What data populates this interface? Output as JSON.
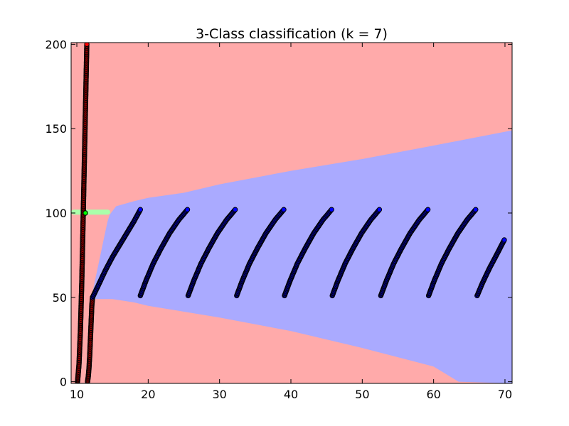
{
  "chart_data": {
    "type": "scatter",
    "title": "3-Class classification (k = 7)",
    "xlabel": "",
    "ylabel": "",
    "xlim": [
      9.2,
      71
    ],
    "ylim": [
      -1,
      201
    ],
    "xticks": [
      10,
      20,
      30,
      40,
      50,
      60,
      70
    ],
    "yticks": [
      0,
      50,
      100,
      150,
      200
    ],
    "grid": false,
    "colors": {
      "region_red": "#FFAAAA",
      "region_green": "#AAFFAA",
      "region_blue": "#AAAAFF",
      "point_red": "#FF0000",
      "point_green": "#00FF00",
      "point_blue": "#0000FF",
      "point_edge": "#000000"
    },
    "regions": {
      "background_class": "red",
      "blue_upper_boundary": [
        [
          14.6,
          99
        ],
        [
          15.5,
          104
        ],
        [
          18,
          107
        ],
        [
          20,
          109
        ],
        [
          25,
          112
        ],
        [
          30,
          117
        ],
        [
          40,
          125
        ],
        [
          50,
          132
        ],
        [
          60,
          140
        ],
        [
          71,
          149
        ]
      ],
      "blue_lower_boundary": [
        [
          12,
          49
        ],
        [
          15,
          49
        ],
        [
          18,
          47
        ],
        [
          20,
          45
        ],
        [
          30,
          38
        ],
        [
          40,
          30
        ],
        [
          50,
          20
        ],
        [
          60,
          9
        ],
        [
          63.5,
          0
        ]
      ],
      "blue_left_boundary": [
        [
          12,
          49
        ],
        [
          13,
          69
        ],
        [
          13.8,
          85
        ],
        [
          14.3,
          95
        ],
        [
          14.6,
          99
        ]
      ],
      "green_band": {
        "x_from": 9.2,
        "x_to": 14.7,
        "y_low": 99,
        "y_high": 102
      }
    },
    "series": [
      {
        "class": "red",
        "points": [
          [
            10.1,
            0
          ],
          [
            10.2,
            5
          ],
          [
            10.3,
            10
          ],
          [
            10.4,
            20
          ],
          [
            10.5,
            30
          ],
          [
            10.6,
            45
          ],
          [
            10.7,
            60
          ],
          [
            10.8,
            80
          ],
          [
            10.9,
            100
          ],
          [
            11.0,
            120
          ],
          [
            11.1,
            140
          ],
          [
            11.2,
            160
          ],
          [
            11.3,
            180
          ],
          [
            11.4,
            200
          ]
        ]
      },
      {
        "class": "red",
        "points": [
          [
            11.5,
            0
          ],
          [
            11.6,
            3
          ],
          [
            11.7,
            8
          ],
          [
            11.8,
            15
          ],
          [
            11.9,
            25
          ],
          [
            12.0,
            35
          ],
          [
            12.1,
            45
          ],
          [
            12.2,
            50
          ]
        ]
      },
      {
        "class": "green",
        "points": [
          [
            11.2,
            100
          ]
        ]
      },
      {
        "class": "blue",
        "points": [
          [
            12.2,
            50
          ],
          [
            13,
            57
          ],
          [
            14,
            66
          ],
          [
            15,
            74
          ],
          [
            16,
            81
          ],
          [
            17,
            88
          ],
          [
            18,
            95
          ],
          [
            18.9,
            102
          ]
        ]
      },
      {
        "class": "blue",
        "points": [
          [
            18.9,
            51
          ],
          [
            19.7,
            60
          ],
          [
            20.7,
            70
          ],
          [
            21.8,
            79
          ],
          [
            23,
            88
          ],
          [
            24.3,
            96
          ],
          [
            25.5,
            102
          ]
        ]
      },
      {
        "class": "blue",
        "points": [
          [
            25.6,
            51
          ],
          [
            26.4,
            60
          ],
          [
            27.4,
            70
          ],
          [
            28.5,
            79
          ],
          [
            29.7,
            88
          ],
          [
            31,
            96
          ],
          [
            32.2,
            102
          ]
        ]
      },
      {
        "class": "blue",
        "points": [
          [
            32.4,
            51
          ],
          [
            33.2,
            60
          ],
          [
            34.2,
            70
          ],
          [
            35.3,
            79
          ],
          [
            36.5,
            88
          ],
          [
            37.8,
            96
          ],
          [
            39,
            102
          ]
        ]
      },
      {
        "class": "blue",
        "points": [
          [
            39.1,
            51
          ],
          [
            39.9,
            60
          ],
          [
            40.9,
            70
          ],
          [
            42,
            79
          ],
          [
            43.2,
            88
          ],
          [
            44.5,
            96
          ],
          [
            45.7,
            102
          ]
        ]
      },
      {
        "class": "blue",
        "points": [
          [
            45.8,
            51
          ],
          [
            46.6,
            60
          ],
          [
            47.6,
            70
          ],
          [
            48.7,
            79
          ],
          [
            49.9,
            88
          ],
          [
            51.2,
            96
          ],
          [
            52.4,
            102
          ]
        ]
      },
      {
        "class": "blue",
        "points": [
          [
            52.6,
            51
          ],
          [
            53.4,
            60
          ],
          [
            54.4,
            70
          ],
          [
            55.5,
            79
          ],
          [
            56.7,
            88
          ],
          [
            58,
            96
          ],
          [
            59.2,
            102
          ]
        ]
      },
      {
        "class": "blue",
        "points": [
          [
            59.3,
            51
          ],
          [
            60.1,
            60
          ],
          [
            61.1,
            70
          ],
          [
            62.2,
            79
          ],
          [
            63.4,
            88
          ],
          [
            64.7,
            96
          ],
          [
            65.9,
            102
          ]
        ]
      },
      {
        "class": "blue",
        "points": [
          [
            66.1,
            51
          ],
          [
            66.9,
            59
          ],
          [
            67.8,
            67
          ],
          [
            68.8,
            75
          ],
          [
            69.9,
            84
          ]
        ]
      }
    ]
  }
}
